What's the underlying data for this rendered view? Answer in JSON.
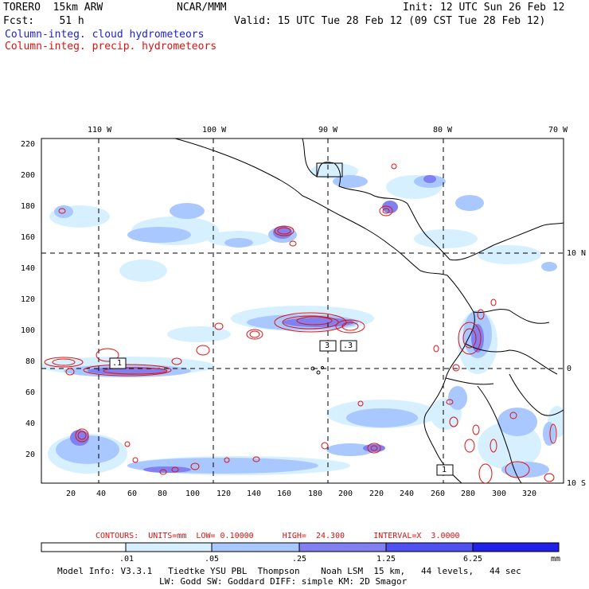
{
  "header": {
    "model": "TORERO  15km ARW",
    "center": "NCAR/MMM",
    "init": "Init: 12 UTC Sun 26 Feb 12",
    "fcst": "Fcst:    51 h",
    "valid": "Valid: 15 UTC Tue 28 Feb 12 (09 CST Tue 28 Feb 12)",
    "field1": "Column-integ. cloud hydrometeors",
    "field2": "Column-integ. precip. hydrometeors"
  },
  "map": {
    "lon_labels": [
      "110 W",
      "100 W",
      "90 W",
      "80 W",
      "70 W"
    ],
    "lat_labels": [
      "10 N",
      "0",
      "10 S"
    ],
    "y_ticks": [
      "220",
      "200",
      "180",
      "160",
      "140",
      "120",
      "100",
      "80",
      "60",
      "40",
      "20"
    ],
    "x_ticks": [
      "20",
      "40",
      "60",
      "80",
      "100",
      "120",
      "140",
      "160",
      "180",
      "200",
      "220",
      "240",
      "260",
      "280",
      "300",
      "320"
    ],
    "contour_labels": [
      ".1",
      "3",
      ".3",
      "1"
    ],
    "colors": {
      "cloud_lightest": "#d6f0ff",
      "cloud_light": "#a8c8ff",
      "cloud_mid": "#8080f0",
      "cloud_dark": "#5050f0",
      "cloud_darkest": "#2020e8",
      "precip_contour": "#e01010",
      "land_outline": "#000000"
    }
  },
  "footer": {
    "contours_line": "CONTOURS:  UNITS=mm  LOW= 0.10000      HIGH=  24.300      INTERVAL=X  3.0000",
    "colorbar_labels": [
      ".01",
      ".05",
      ".25",
      "1.25",
      "6.25"
    ],
    "colorbar_unit": "mm",
    "info1": "Model Info: V3.3.1   Tiedtke YSU PBL  Thompson    Noah LSM  15 km,   44 levels,   44 sec",
    "info2": "LW: Godd SW: Goddard DIFF: simple KM: 2D Smagor"
  }
}
